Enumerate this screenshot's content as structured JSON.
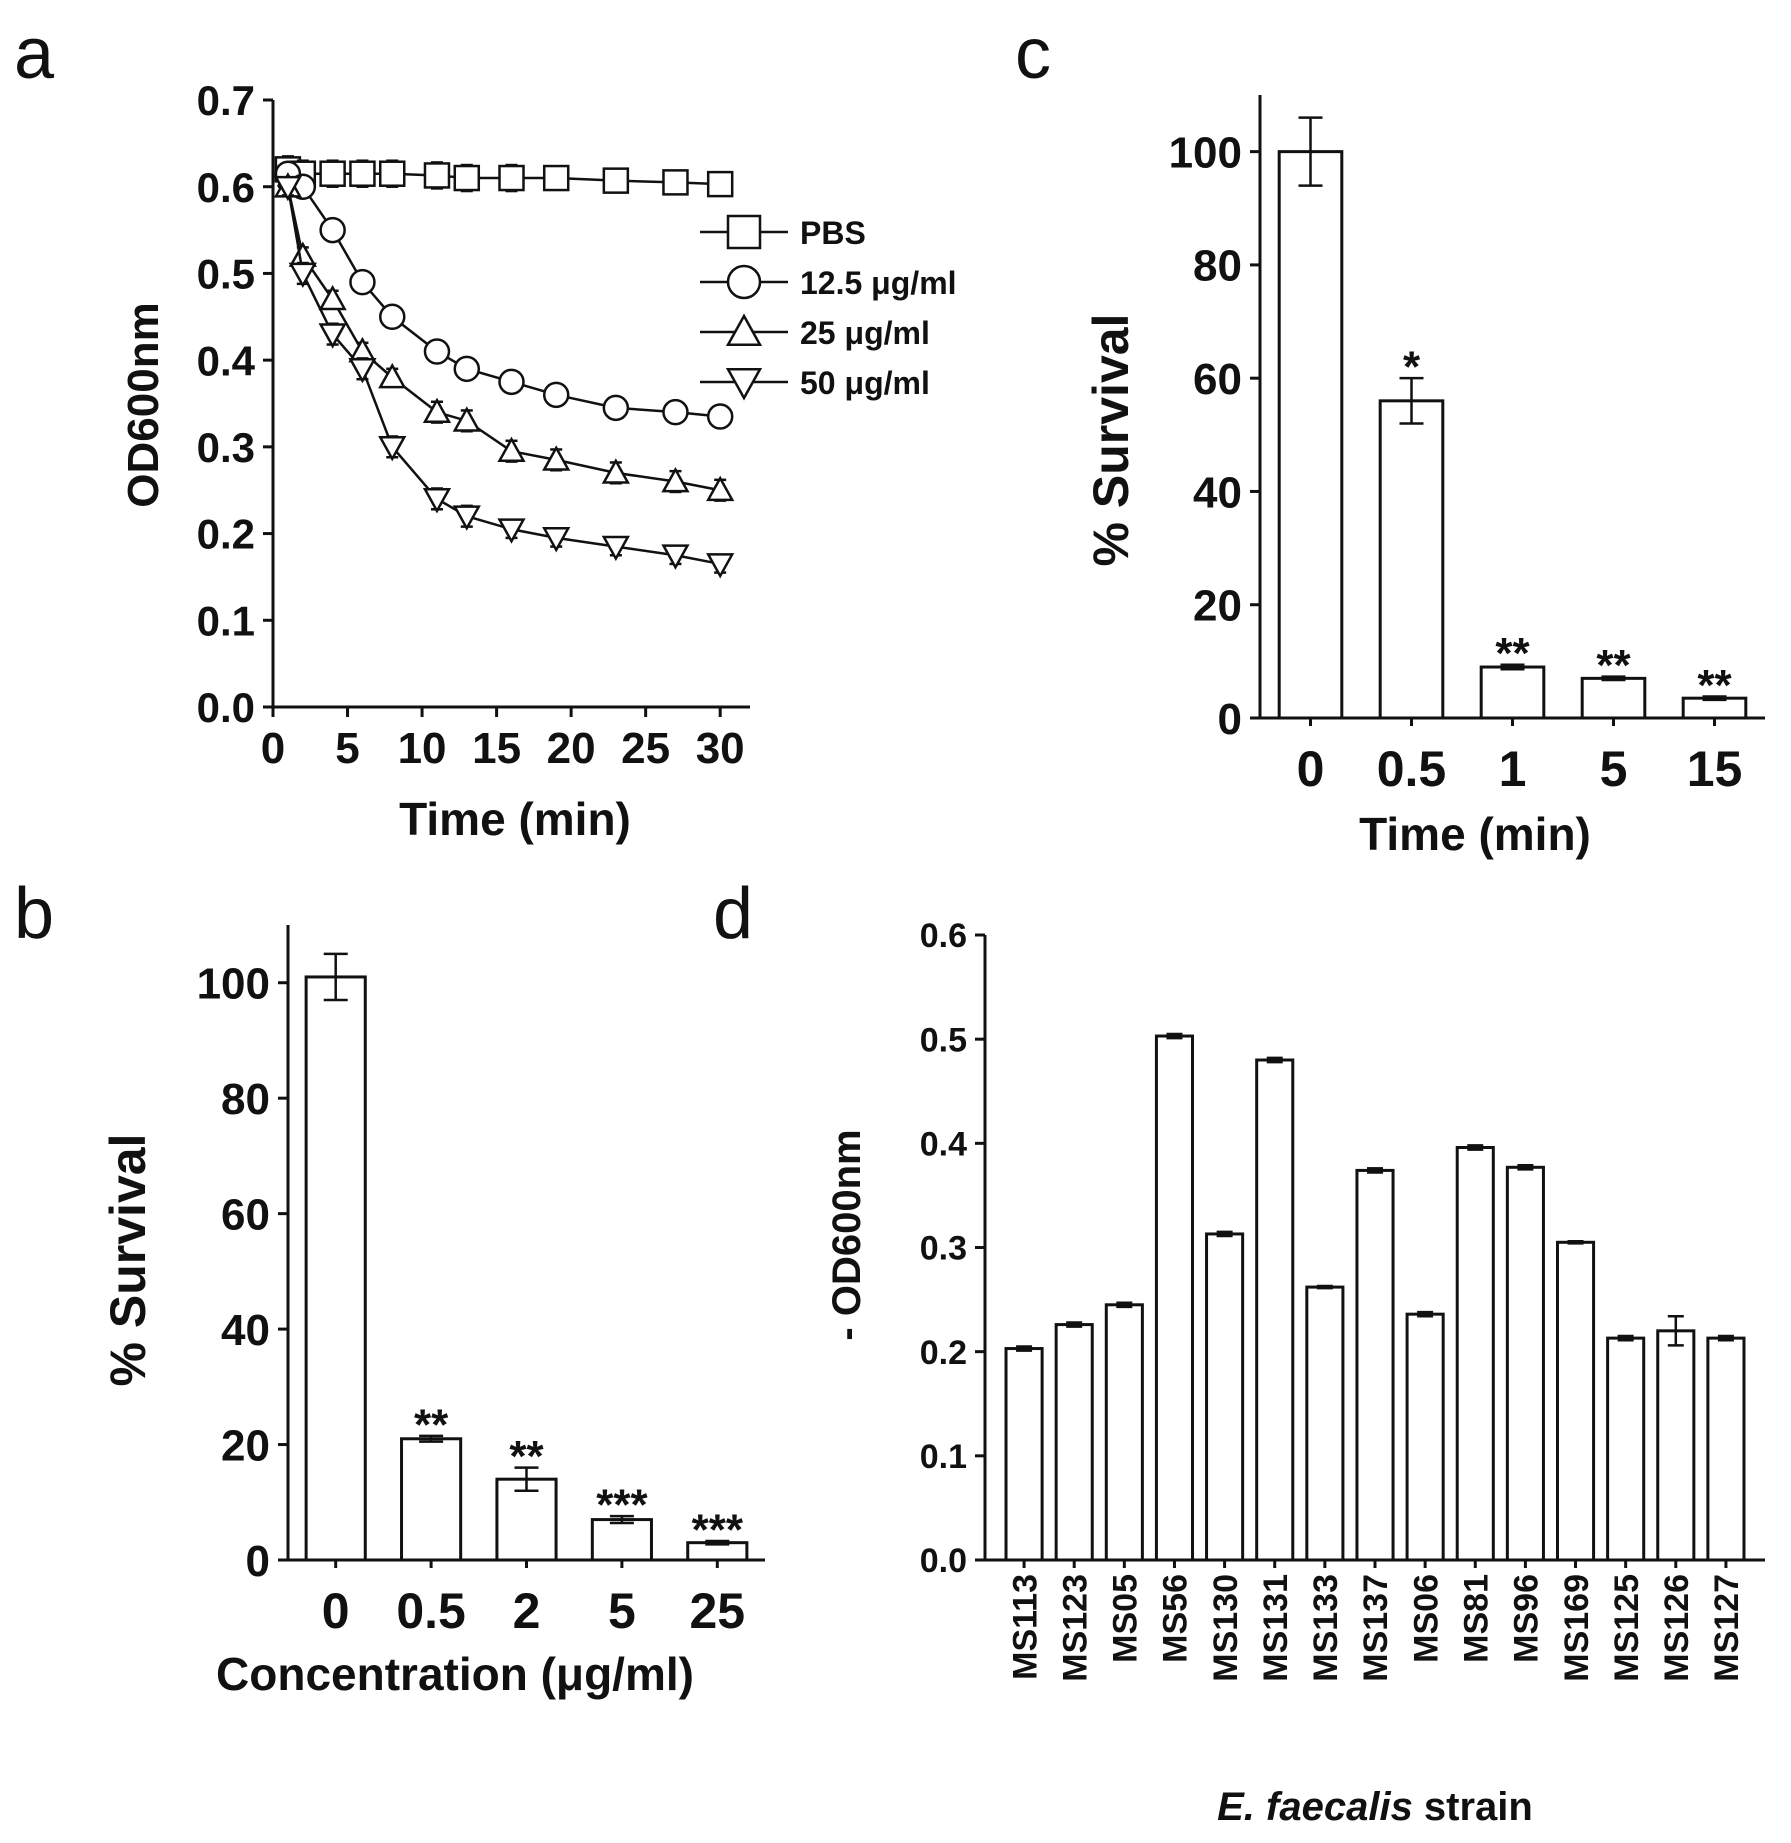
{
  "chart_data": [
    {
      "panel_label": "a",
      "type": "line",
      "xlabel": "Time (min)",
      "ylabel": "OD600nm",
      "xlim": [
        0,
        32
      ],
      "ylim": [
        0,
        0.7
      ],
      "xticks": [
        0,
        5,
        10,
        15,
        20,
        25,
        30
      ],
      "xtick_labels": [
        "0",
        "5",
        "10",
        "15",
        "20",
        "25",
        "30"
      ],
      "yticks": [
        0.0,
        0.1,
        0.2,
        0.3,
        0.4,
        0.5,
        0.6,
        0.7
      ],
      "ytick_labels": [
        "0.0",
        "0.1",
        "0.2",
        "0.3",
        "0.4",
        "0.5",
        "0.6",
        "0.7"
      ],
      "legend_position": "right",
      "x": [
        1,
        2,
        4,
        6,
        8,
        11,
        13,
        16,
        19,
        23,
        27,
        30
      ],
      "series": [
        {
          "name": "PBS",
          "marker": "square",
          "values": [
            0.62,
            0.615,
            0.615,
            0.615,
            0.615,
            0.613,
            0.61,
            0.61,
            0.61,
            0.607,
            0.605,
            0.603
          ],
          "error": [
            0.015,
            0.015,
            0.015,
            0.015,
            0.015,
            0.015,
            0.015,
            0.015,
            0.012,
            0.012,
            0.012,
            0.012
          ]
        },
        {
          "name": "12.5 μg/ml",
          "marker": "circle",
          "values": [
            0.615,
            0.6,
            0.55,
            0.49,
            0.45,
            0.41,
            0.39,
            0.375,
            0.36,
            0.345,
            0.34,
            0.335
          ],
          "error": [
            0.01,
            0.01,
            0.01,
            0.01,
            0.01,
            0.01,
            0.01,
            0.01,
            0.01,
            0.01,
            0.01,
            0.01
          ]
        },
        {
          "name": "25 μg/ml",
          "marker": "triangle-up",
          "values": [
            0.6,
            0.52,
            0.47,
            0.41,
            0.38,
            0.34,
            0.33,
            0.295,
            0.285,
            0.27,
            0.26,
            0.25
          ],
          "error": [
            0.01,
            0.01,
            0.01,
            0.01,
            0.01,
            0.012,
            0.012,
            0.012,
            0.012,
            0.012,
            0.012,
            0.012
          ]
        },
        {
          "name": "50 μg/ml",
          "marker": "triangle-down",
          "values": [
            0.6,
            0.5,
            0.43,
            0.39,
            0.3,
            0.24,
            0.22,
            0.205,
            0.195,
            0.185,
            0.175,
            0.165
          ],
          "error": [
            0.01,
            0.012,
            0.012,
            0.012,
            0.012,
            0.012,
            0.012,
            0.01,
            0.01,
            0.01,
            0.01,
            0.01
          ]
        }
      ]
    },
    {
      "panel_label": "b",
      "type": "bar",
      "xlabel": "Concentration (μg/ml)",
      "ylabel": "% Survival",
      "ylim": [
        0,
        110
      ],
      "yticks": [
        0,
        20,
        40,
        60,
        80,
        100
      ],
      "ytick_labels": [
        "0",
        "20",
        "40",
        "60",
        "80",
        "100"
      ],
      "categories": [
        "0",
        "0.5",
        "2",
        "5",
        "25"
      ],
      "values": [
        101,
        21,
        14,
        7,
        3
      ],
      "errors": [
        4,
        0.5,
        2,
        0.6,
        0.3
      ],
      "annotations": [
        "",
        "**",
        "**",
        "***",
        "***"
      ]
    },
    {
      "panel_label": "c",
      "type": "bar",
      "xlabel": "Time (min)",
      "ylabel": "% Survival",
      "ylim": [
        0,
        110
      ],
      "yticks": [
        0,
        20,
        40,
        60,
        80,
        100
      ],
      "ytick_labels": [
        "0",
        "20",
        "40",
        "60",
        "80",
        "100"
      ],
      "categories": [
        "0",
        "0.5",
        "1",
        "5",
        "15"
      ],
      "values": [
        100,
        56,
        9,
        7,
        3.5
      ],
      "errors": [
        6,
        4,
        0.4,
        0.3,
        0.3
      ],
      "annotations": [
        "",
        "*",
        "**",
        "**",
        "**"
      ]
    },
    {
      "panel_label": "d",
      "type": "bar",
      "xlabel_italic": "E. faecalis",
      "xlabel_rest": " strain",
      "ylabel": "- OD600nm",
      "ylim": [
        0,
        0.6
      ],
      "yticks": [
        0.0,
        0.1,
        0.2,
        0.3,
        0.4,
        0.5,
        0.6
      ],
      "ytick_labels": [
        "0.0",
        "0.1",
        "0.2",
        "0.3",
        "0.4",
        "0.5",
        "0.6"
      ],
      "categories": [
        "MS113",
        "MS123",
        "MS05",
        "MS56",
        "MS130",
        "MS131",
        "MS133",
        "MS137",
        "MS06",
        "MS81",
        "MS96",
        "MS169",
        "MS125",
        "MS126",
        "MS127"
      ],
      "values": [
        0.203,
        0.226,
        0.245,
        0.503,
        0.313,
        0.48,
        0.262,
        0.374,
        0.236,
        0.396,
        0.377,
        0.305,
        0.213,
        0.22,
        0.213
      ],
      "errors": [
        0.002,
        0.002,
        0.002,
        0.002,
        0.002,
        0.002,
        0.001,
        0.002,
        0.002,
        0.002,
        0.002,
        0.001,
        0.002,
        0.014,
        0.002
      ]
    }
  ]
}
